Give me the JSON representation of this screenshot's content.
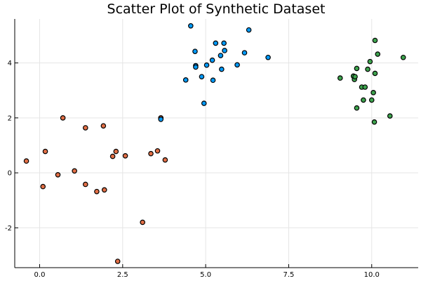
{
  "chart_data": {
    "type": "scatter",
    "title": "Scatter Plot of Synthetic Dataset",
    "xlabel": "",
    "ylabel": "",
    "xlim": [
      -0.75,
      11.4
    ],
    "ylim": [
      -3.45,
      5.6
    ],
    "x_ticks": [
      0,
      2.5,
      5,
      7.5,
      10
    ],
    "x_tick_labels": [
      "0.0",
      "2.5",
      "5.0",
      "7.5",
      "10.0"
    ],
    "y_ticks": [
      -2,
      0,
      2,
      4
    ],
    "y_tick_labels": [
      "-2",
      "0",
      "2",
      "4"
    ],
    "grid": true,
    "legend": "none",
    "series": [
      {
        "color": "#e26f46",
        "points": [
          [
            -0.4,
            0.43
          ],
          [
            0.17,
            0.78
          ],
          [
            0.1,
            -0.5
          ],
          [
            0.55,
            -0.07
          ],
          [
            0.7,
            2.0
          ],
          [
            1.05,
            0.07
          ],
          [
            1.38,
            1.64
          ],
          [
            1.38,
            -0.42
          ],
          [
            1.72,
            -0.68
          ],
          [
            1.92,
            1.71
          ],
          [
            1.95,
            -0.62
          ],
          [
            2.2,
            0.6
          ],
          [
            2.3,
            0.78
          ],
          [
            2.58,
            0.62
          ],
          [
            2.35,
            -3.22
          ],
          [
            3.1,
            -1.8
          ],
          [
            3.35,
            0.7
          ],
          [
            3.55,
            0.8
          ],
          [
            3.65,
            2.0
          ],
          [
            3.78,
            0.47
          ]
        ]
      },
      {
        "color": "#009af9",
        "points": [
          [
            3.65,
            1.95
          ],
          [
            4.55,
            5.35
          ],
          [
            4.4,
            3.38
          ],
          [
            4.68,
            4.42
          ],
          [
            4.7,
            3.9
          ],
          [
            4.7,
            3.85
          ],
          [
            4.88,
            3.5
          ],
          [
            4.95,
            2.53
          ],
          [
            5.03,
            3.92
          ],
          [
            5.2,
            4.1
          ],
          [
            5.22,
            3.37
          ],
          [
            5.3,
            4.72
          ],
          [
            5.45,
            4.27
          ],
          [
            5.48,
            3.77
          ],
          [
            5.55,
            4.72
          ],
          [
            5.57,
            4.45
          ],
          [
            5.95,
            3.93
          ],
          [
            6.17,
            4.37
          ],
          [
            6.3,
            5.2
          ],
          [
            6.88,
            4.2
          ]
        ]
      },
      {
        "color": "#3ea44e",
        "points": [
          [
            9.05,
            3.45
          ],
          [
            9.45,
            3.52
          ],
          [
            9.48,
            3.4
          ],
          [
            9.5,
            3.5
          ],
          [
            9.55,
            3.8
          ],
          [
            9.55,
            2.36
          ],
          [
            9.7,
            3.12
          ],
          [
            9.75,
            2.65
          ],
          [
            9.8,
            3.12
          ],
          [
            9.88,
            3.77
          ],
          [
            9.95,
            4.05
          ],
          [
            10.0,
            2.65
          ],
          [
            10.05,
            2.92
          ],
          [
            10.1,
            4.82
          ],
          [
            10.08,
            1.85
          ],
          [
            10.1,
            3.62
          ],
          [
            10.18,
            4.32
          ],
          [
            10.55,
            2.07
          ],
          [
            10.95,
            4.2
          ]
        ]
      }
    ]
  }
}
